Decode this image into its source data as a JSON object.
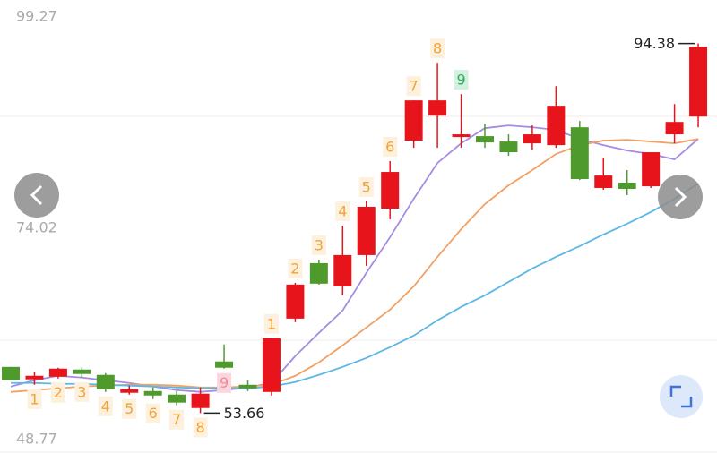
{
  "chart_data": {
    "type": "candlestick",
    "ylim": [
      48.77,
      99.27
    ],
    "yticks": [
      48.77,
      74.02,
      99.27
    ],
    "up_color": "#e8141c",
    "down_color": "#4f9a2c",
    "open": [
      58.75,
      57.38,
      57.67,
      58.46,
      57.87,
      55.9,
      56.09,
      55.7,
      54.22,
      59.35,
      56.78,
      55.99,
      64.07,
      70.18,
      67.62,
      71.07,
      76.19,
      83.68,
      86.43,
      84.07,
      84.17,
      83.58,
      83.38,
      83.18,
      85.15,
      78.46,
      79.05,
      78.65,
      84.37,
      86.33
    ],
    "high": [
      58.75,
      58.16,
      58.66,
      58.66,
      58.06,
      56.69,
      56.49,
      56.09,
      56.49,
      61.22,
      57.28,
      61.91,
      68.01,
      70.58,
      74.32,
      76.98,
      81.41,
      88.11,
      92.25,
      88.8,
      85.55,
      84.37,
      85.35,
      89.68,
      85.84,
      81.8,
      80.43,
      82.4,
      87.71,
      94.38
    ],
    "low": [
      57.28,
      56.78,
      57.48,
      57.57,
      55.99,
      55.7,
      55.21,
      54.52,
      53.66,
      58.56,
      56.09,
      55.6,
      63.68,
      67.82,
      66.63,
      69.89,
      75.01,
      82.89,
      82.89,
      82.89,
      82.89,
      82.0,
      82.69,
      82.89,
      79.34,
      78.26,
      77.67,
      78.46,
      83.38,
      85.15
    ],
    "close": [
      57.28,
      57.77,
      58.56,
      57.97,
      56.29,
      56.29,
      55.6,
      54.82,
      55.8,
      58.66,
      56.39,
      61.91,
      67.82,
      67.92,
      71.07,
      76.39,
      80.23,
      88.11,
      88.11,
      84.37,
      83.48,
      82.4,
      84.37,
      87.52,
      79.44,
      79.83,
      78.36,
      82.4,
      85.74,
      94.02
    ],
    "series": [
      {
        "color": "#a58be3",
        "values": [
          56.59,
          57.28,
          57.77,
          57.57,
          57.28,
          56.98,
          56.59,
          56.19,
          56.0,
          56.19,
          56.49,
          56.98,
          59.94,
          62.5,
          64.96,
          69.1,
          73.04,
          77.27,
          81.21,
          83.38,
          85.05,
          85.35,
          85.15,
          84.86,
          83.87,
          83.18,
          82.59,
          82.2,
          81.61,
          83.87
        ]
      },
      {
        "color": "#f3a063",
        "values": [
          55.99,
          56.19,
          56.39,
          56.59,
          56.69,
          56.78,
          56.78,
          56.69,
          56.49,
          56.49,
          56.59,
          56.78,
          57.77,
          59.25,
          61.12,
          63.09,
          65.06,
          67.62,
          70.87,
          73.92,
          76.68,
          78.75,
          80.43,
          82.2,
          83.18,
          83.68,
          83.77,
          83.58,
          83.38,
          83.87
        ]
      },
      {
        "color": "#5cb7e6",
        "values": [
          56.98,
          56.98,
          56.88,
          56.88,
          56.78,
          56.69,
          56.59,
          56.49,
          56.39,
          56.39,
          56.39,
          56.59,
          57.08,
          57.87,
          58.75,
          59.74,
          60.92,
          62.2,
          63.88,
          65.36,
          66.63,
          68.11,
          69.59,
          70.87,
          72.05,
          73.33,
          74.52,
          75.8,
          77.27,
          78.95
        ]
      }
    ],
    "count_below": [
      null,
      1,
      2,
      3,
      4,
      5,
      6,
      7,
      8,
      9,
      null,
      null,
      null,
      null,
      null,
      null,
      null,
      null,
      null,
      null,
      null,
      null,
      null,
      null,
      null,
      null,
      null,
      null,
      null,
      null
    ],
    "count_above": [
      null,
      null,
      null,
      null,
      null,
      null,
      null,
      null,
      null,
      null,
      null,
      1,
      2,
      3,
      4,
      5,
      6,
      7,
      8,
      9,
      null,
      null,
      null,
      null,
      null,
      null,
      null,
      null,
      null,
      null
    ]
  }
}
